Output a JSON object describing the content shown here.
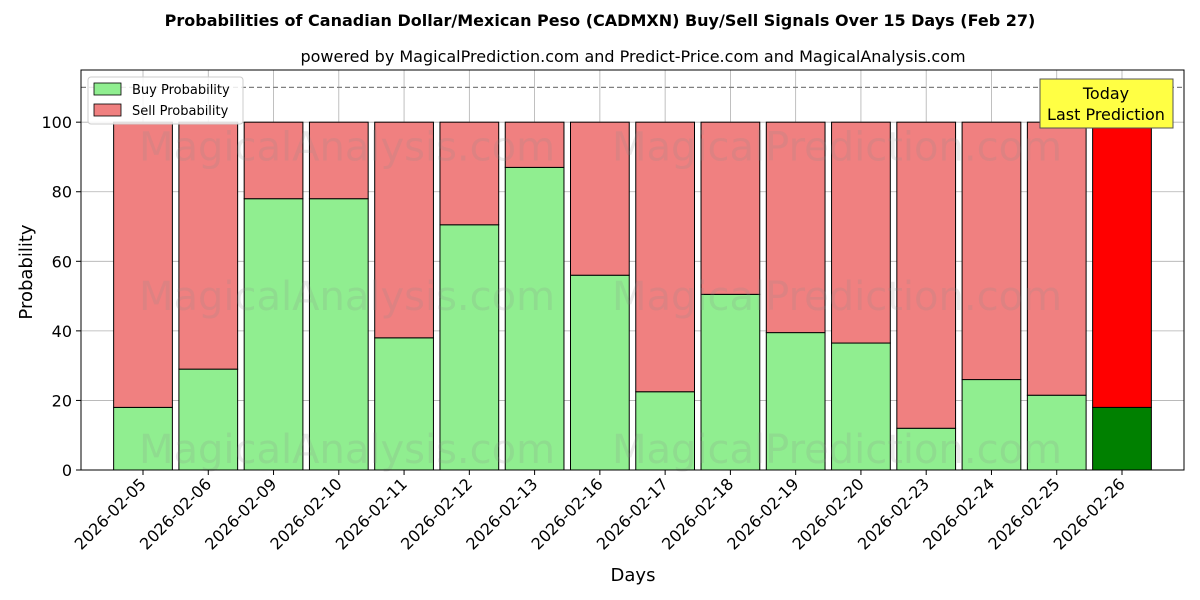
{
  "title": "Probabilities of Canadian Dollar/Mexican Peso (CADMXN) Buy/Sell Signals Over 15 Days (Feb 27)",
  "subtitle": "powered by MagicalPrediction.com and Predict-Price.com and MagicalAnalysis.com",
  "annotation": {
    "line1": "Today",
    "line2": "Last Prediction",
    "color": "#ffff44"
  },
  "watermarks": [
    "MagicalAnalysis.com",
    "MagicalPrediction.com"
  ],
  "colors": {
    "buy": "#90ee90",
    "sell": "#f08080",
    "last_buy": "#008000",
    "last_sell": "#ff0000",
    "reference_line": "#808080",
    "grid": "#b0b0b0"
  },
  "chart_data": {
    "type": "bar",
    "stacked": true,
    "xlabel": "Days",
    "ylabel": "Probability",
    "ylim": [
      0,
      115
    ],
    "yticks": [
      0,
      20,
      40,
      60,
      80,
      100
    ],
    "reference_line": 110,
    "grid": true,
    "legend_position": "top-left",
    "categories": [
      "2026-02-05",
      "2026-02-06",
      "2026-02-09",
      "2026-02-10",
      "2026-02-11",
      "2026-02-12",
      "2026-02-13",
      "2026-02-16",
      "2026-02-17",
      "2026-02-18",
      "2026-02-19",
      "2026-02-20",
      "2026-02-23",
      "2026-02-24",
      "2026-02-25",
      "2026-02-26"
    ],
    "series": [
      {
        "name": "Buy Probability",
        "values": [
          18,
          29,
          78,
          78,
          38,
          70.5,
          87,
          56,
          22.5,
          50.5,
          39.5,
          36.5,
          12,
          26,
          21.5,
          18
        ]
      },
      {
        "name": "Sell Probability",
        "values": [
          82,
          71,
          22,
          22,
          62,
          29.5,
          13,
          44,
          77.5,
          49.5,
          60.5,
          63.5,
          88,
          74,
          78.5,
          82
        ]
      }
    ]
  }
}
